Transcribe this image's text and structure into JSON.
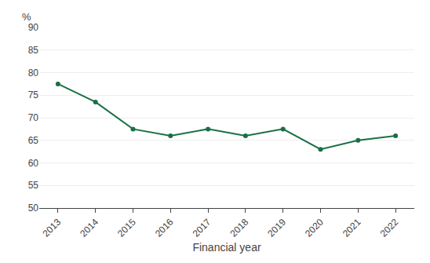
{
  "chart_data": {
    "type": "line",
    "xlabel": "Financial year",
    "ylabel": "%",
    "categories": [
      "2013",
      "2014",
      "2015",
      "2016",
      "2017",
      "2018",
      "2019",
      "2020",
      "2021",
      "2022"
    ],
    "values": [
      77.5,
      73.5,
      67.5,
      66.0,
      67.5,
      66.0,
      67.5,
      63.0,
      65.0,
      66.0
    ],
    "color": "#1a7044",
    "marker": "circle",
    "ylim": [
      50,
      90
    ],
    "yticks": [
      50,
      55,
      60,
      65,
      70,
      75,
      80,
      85,
      90
    ],
    "grid": true
  }
}
